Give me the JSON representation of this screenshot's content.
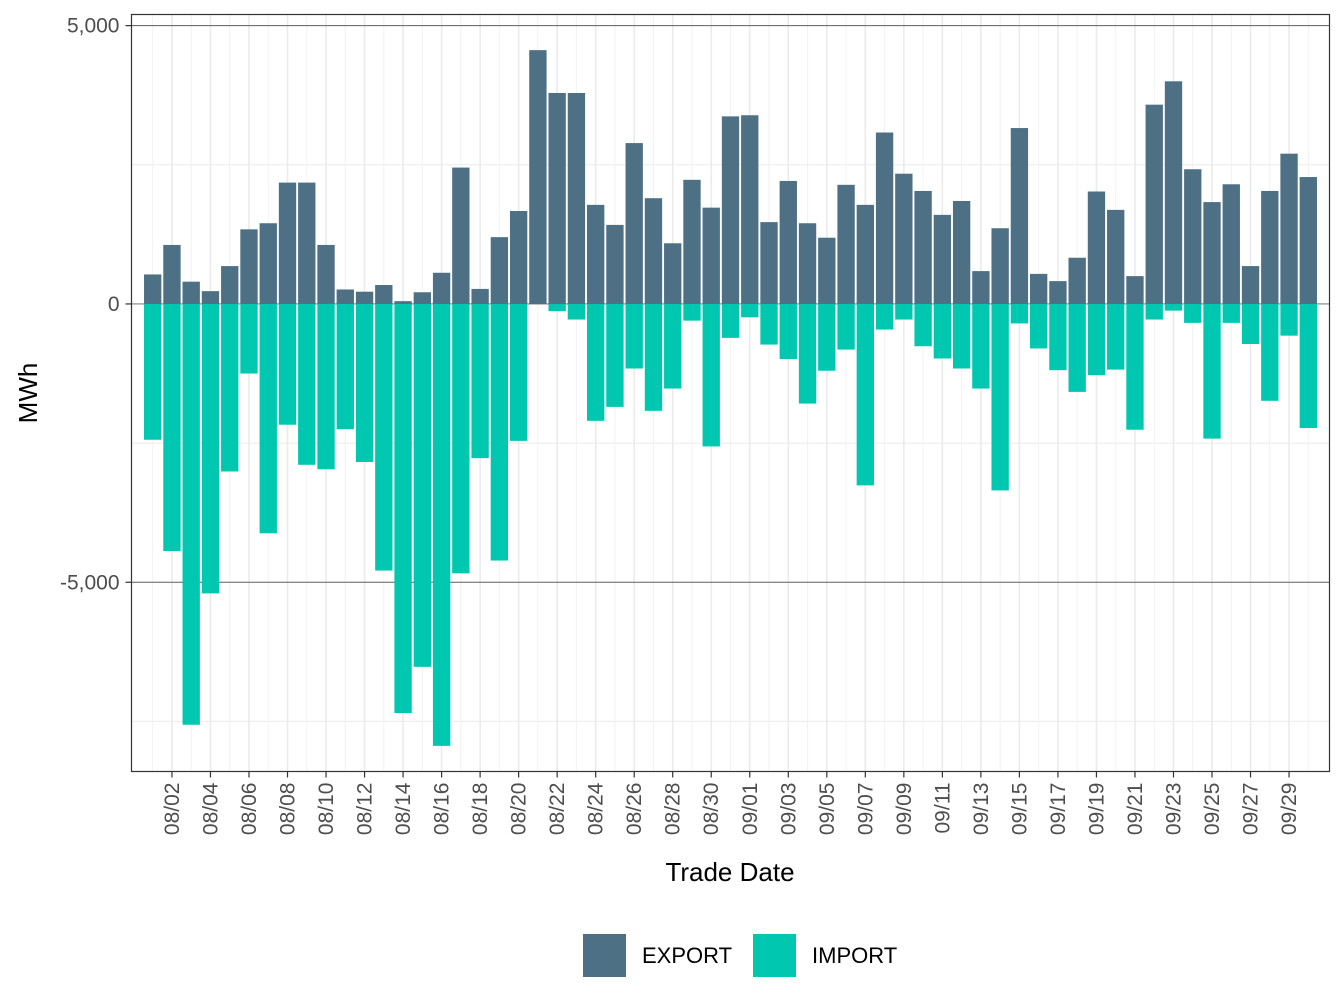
{
  "chart_data": {
    "type": "bar",
    "stacked": true,
    "xlabel": "Trade Date",
    "ylabel": "MWh",
    "ylim": [
      -8400,
      5200
    ],
    "y_ticks": [
      5000,
      0,
      -5000
    ],
    "y_tick_labels": [
      "5,000",
      "0",
      "-5,000"
    ],
    "grid": true,
    "legend_position": "bottom",
    "categories": [
      "08/01",
      "08/02",
      "08/03",
      "08/04",
      "08/05",
      "08/06",
      "08/07",
      "08/08",
      "08/09",
      "08/10",
      "08/11",
      "08/12",
      "08/13",
      "08/14",
      "08/15",
      "08/16",
      "08/17",
      "08/18",
      "08/19",
      "08/20",
      "08/21",
      "08/22",
      "08/23",
      "08/24",
      "08/25",
      "08/26",
      "08/27",
      "08/28",
      "08/29",
      "08/30",
      "08/31",
      "09/01",
      "09/02",
      "09/03",
      "09/04",
      "09/05",
      "09/06",
      "09/07",
      "09/08",
      "09/09",
      "09/10",
      "09/11",
      "09/12",
      "09/13",
      "09/14",
      "09/15",
      "09/16",
      "09/17",
      "09/18",
      "09/19",
      "09/20",
      "09/21",
      "09/22",
      "09/23",
      "09/24",
      "09/25",
      "09/26",
      "09/27",
      "09/28",
      "09/29",
      "09/30"
    ],
    "x_tick_labels": [
      "08/02",
      "08/04",
      "08/06",
      "08/08",
      "08/10",
      "08/12",
      "08/14",
      "08/16",
      "08/18",
      "08/20",
      "08/22",
      "08/24",
      "08/26",
      "08/28",
      "08/30",
      "09/01",
      "09/03",
      "09/05",
      "09/07",
      "09/09",
      "09/11",
      "09/13",
      "09/15",
      "09/17",
      "09/19",
      "09/21",
      "09/23",
      "09/25",
      "09/27",
      "09/29"
    ],
    "series": [
      {
        "name": "EXPORT",
        "color": "#4e7085",
        "values": [
          530,
          1060,
          400,
          230,
          680,
          1340,
          1450,
          2180,
          2180,
          1060,
          260,
          220,
          340,
          50,
          210,
          560,
          2450,
          270,
          1200,
          1670,
          4560,
          3790,
          3790,
          1780,
          1420,
          2890,
          1900,
          1090,
          2230,
          1730,
          3370,
          3390,
          1470,
          2210,
          1450,
          1190,
          2140,
          1780,
          3080,
          2340,
          2030,
          1600,
          1850,
          590,
          1360,
          3160,
          540,
          410,
          830,
          2020,
          1690,
          500,
          3580,
          4000,
          2420,
          1830,
          2150,
          680,
          2030,
          2700,
          2280
        ]
      },
      {
        "name": "IMPORT",
        "color": "#00c8b0",
        "values": [
          -2440,
          -4440,
          -7560,
          -5200,
          -3010,
          -1250,
          -4120,
          -2170,
          -2890,
          -2970,
          -2250,
          -2840,
          -4790,
          -7350,
          -6520,
          -7940,
          -4840,
          -2770,
          -4610,
          -2460,
          0,
          -130,
          -280,
          -2100,
          -1850,
          -1160,
          -1920,
          -1520,
          -300,
          -2560,
          -610,
          -240,
          -730,
          -990,
          -1790,
          -1200,
          -820,
          -3260,
          -460,
          -280,
          -760,
          -980,
          -1160,
          -1520,
          -3350,
          -350,
          -800,
          -1190,
          -1580,
          -1280,
          -1180,
          -2260,
          -280,
          -120,
          -340,
          -2420,
          -340,
          -720,
          -1740,
          -570,
          -2230
        ]
      }
    ]
  }
}
